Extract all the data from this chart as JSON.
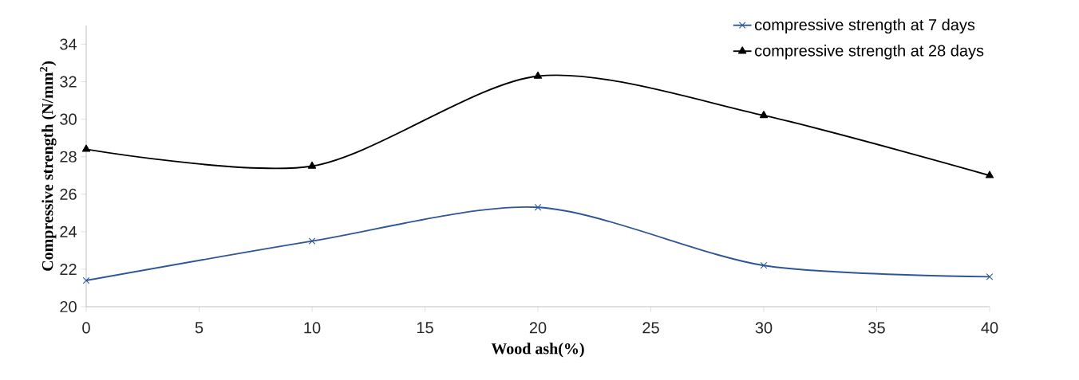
{
  "chart_data": {
    "type": "line",
    "xlabel": "Wood ash(%)",
    "ylabel": "Compressive strength (N/mm$^{2}$)",
    "x": [
      0,
      10,
      20,
      30,
      40
    ],
    "series": [
      {
        "name": "compressive strength at 7 days",
        "color": "#2e5597",
        "marker": "cross",
        "values": [
          21.4,
          23.5,
          25.3,
          22.2,
          21.6
        ]
      },
      {
        "name": "compressive strength at 28 days",
        "color": "#000000",
        "marker": "triangle",
        "values": [
          28.4,
          27.5,
          32.3,
          30.2,
          27.0
        ]
      }
    ],
    "xlim": [
      0,
      40
    ],
    "xticks": [
      0,
      5,
      10,
      15,
      20,
      25,
      30,
      35,
      40
    ],
    "ylim": [
      20,
      35
    ],
    "yticks": [
      20,
      22,
      24,
      26,
      28,
      30,
      32,
      34
    ],
    "grid": false,
    "legend": "top right",
    "line_style": "solid"
  }
}
